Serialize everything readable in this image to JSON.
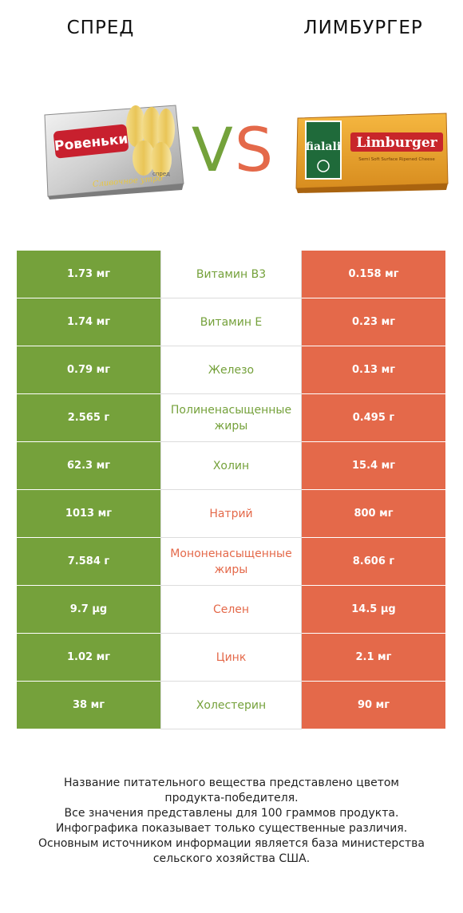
{
  "header": {
    "left_title": "СПРЕД",
    "right_title": "ЛИМБУРГЕР",
    "vs_v": "V",
    "vs_s": "S"
  },
  "products": {
    "left": {
      "brand": "Ровеньки",
      "label": "Сливочное утро",
      "sub": "спред"
    },
    "right": {
      "brand": "fialali",
      "label": "Limburger",
      "sub": "Semi Soft Surface Ripened Cheese"
    }
  },
  "colors": {
    "winner_left": "#75a13b",
    "winner_right": "#e4694a"
  },
  "chart_data": {
    "type": "table",
    "columns": [
      "СПРЕД",
      "Нутриент",
      "ЛИМБУРГЕР"
    ],
    "rows": [
      {
        "left": "1.73 мг",
        "nutrient": "Витамин B3",
        "right": "0.158 мг",
        "winner": "left"
      },
      {
        "left": "1.74 мг",
        "nutrient": "Витамин E",
        "right": "0.23 мг",
        "winner": "left"
      },
      {
        "left": "0.79 мг",
        "nutrient": "Железо",
        "right": "0.13 мг",
        "winner": "left"
      },
      {
        "left": "2.565 г",
        "nutrient": "Полиненасыщенные жиры",
        "right": "0.495 г",
        "winner": "left"
      },
      {
        "left": "62.3 мг",
        "nutrient": "Холин",
        "right": "15.4 мг",
        "winner": "left"
      },
      {
        "left": "1013 мг",
        "nutrient": "Натрий",
        "right": "800 мг",
        "winner": "right"
      },
      {
        "left": "7.584 г",
        "nutrient": "Мононенасыщенные жиры",
        "right": "8.606 г",
        "winner": "right"
      },
      {
        "left": "9.7 µg",
        "nutrient": "Селен",
        "right": "14.5 µg",
        "winner": "right"
      },
      {
        "left": "1.02 мг",
        "nutrient": "Цинк",
        "right": "2.1 мг",
        "winner": "right"
      },
      {
        "left": "38 мг",
        "nutrient": "Холестерин",
        "right": "90 мг",
        "winner": "left"
      }
    ]
  },
  "footnote": [
    "Название питательного вещества представлено цветом",
    "продукта-победителя.",
    "Все значения представлены для 100 граммов продукта.",
    "Инфографика показывает только существенные различия.",
    "Основным источником информации является база министерства",
    "сельского хозяйства США."
  ]
}
